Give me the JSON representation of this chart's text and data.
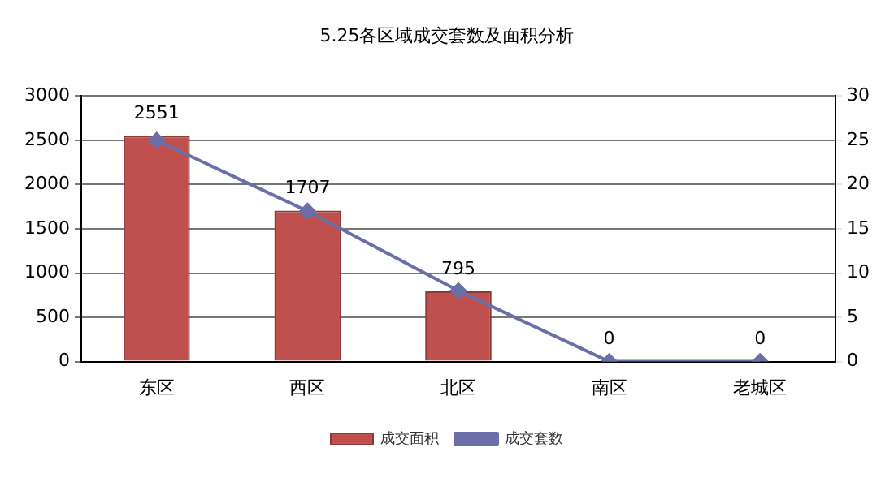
{
  "chart_data": {
    "type": "bar",
    "title": "5.25各区域成交套数及面积分析",
    "categories": [
      "东区",
      "西区",
      "北区",
      "南区",
      "老城区"
    ],
    "series": [
      {
        "name": "成交面积",
        "color": "#c0504d",
        "values": [
          2551,
          1707,
          795,
          0,
          0
        ],
        "value_labels": [
          "2551",
          "1707",
          "795",
          "0",
          "0"
        ]
      },
      {
        "name": "成交套数",
        "type": "line",
        "axis": "y2",
        "color": "#6a6fa8",
        "values": [
          25,
          17,
          8,
          0,
          0
        ]
      }
    ],
    "ylim": [
      0,
      3000
    ],
    "yticks": [
      0,
      500,
      1000,
      1500,
      2000,
      2500,
      3000
    ],
    "y2lim": [
      0,
      30
    ],
    "y2ticks": [
      0,
      5,
      10,
      15,
      20,
      25,
      30
    ],
    "grid": "y",
    "legend": "bottom",
    "marker": "diamond"
  }
}
